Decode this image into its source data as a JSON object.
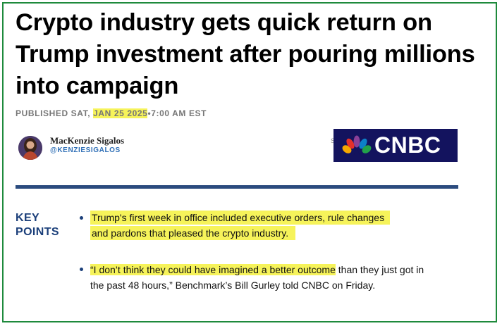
{
  "article": {
    "headline": "Crypto industry gets quick return on Trump investment after pouring millions into campaign",
    "published_prefix": "PUBLISHED SAT, ",
    "published_date": "JAN 25 2025",
    "published_time": "•7:00 AM EST"
  },
  "author": {
    "name": "MacKenzie Sigalos",
    "handle": "@KENZIESIGALOS",
    "faint_char": "S"
  },
  "logo": {
    "text": "CNBC",
    "bg_color": "#13135e"
  },
  "key_points": {
    "label_line1": "KEY",
    "label_line2": "POINTS",
    "points": [
      {
        "line1": "Trump's first week in office included executive orders, rule changes",
        "line2": "and pardons that pleased the crypto industry."
      },
      {
        "highlight": "“I don’t think they could have imagined a better outcome",
        "rest": " than they just got in the past 48 hours,” Benchmark’s Bill Gurley told CNBC on Friday."
      }
    ]
  },
  "colors": {
    "highlight": "#f6f35a",
    "divider": "#2b4b7e",
    "border": "#1e8a3c",
    "key_points_text": "#1b3f7a"
  }
}
